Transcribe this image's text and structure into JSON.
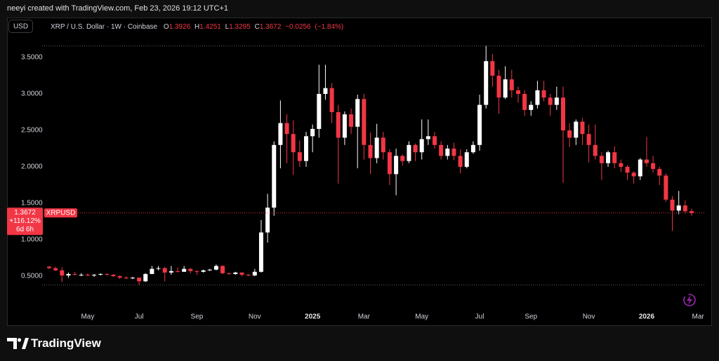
{
  "chart_data": {
    "type": "candlestick",
    "attribution": "neeyi created with TradingView.com, Feb 23, 2026 19:12 UTC+1",
    "currency_button": "USD",
    "symbol_description": "XRP / U.S. Dollar · 1W · Coinbase",
    "ohlc_labels": [
      "O",
      "H",
      "L",
      "C"
    ],
    "change_label": "−0.0256",
    "change_percent_label": "(−1.84%)",
    "price_change_label": "+116.12%",
    "countdown": "6d 6h",
    "branding": "TradingView",
    "grid": false,
    "up_color": "#ffffff",
    "down_color": "#f23645",
    "ylim": [
      0,
      3.85
    ],
    "yticks": [
      {
        "value": 0.5,
        "label": "0.5000"
      },
      {
        "value": 1,
        "label": "1.0000"
      },
      {
        "value": 1.5,
        "label": "1.5000"
      },
      {
        "value": 2,
        "label": "2.0000"
      },
      {
        "value": 2.5,
        "label": "2.5000"
      },
      {
        "value": 3,
        "label": "3.0000"
      },
      {
        "value": 3.5,
        "label": "3.5000"
      }
    ],
    "categories": [
      null,
      null,
      null,
      null,
      null,
      null,
      "May",
      null,
      null,
      null,
      null,
      null,
      null,
      null,
      "Jul",
      null,
      null,
      null,
      null,
      null,
      null,
      null,
      null,
      "Sep",
      null,
      null,
      null,
      null,
      null,
      null,
      null,
      null,
      "Nov",
      null,
      null,
      null,
      null,
      null,
      null,
      null,
      null,
      "2025",
      null,
      null,
      null,
      null,
      null,
      null,
      null,
      "Mar",
      null,
      null,
      null,
      null,
      null,
      null,
      null,
      null,
      "May",
      null,
      null,
      null,
      null,
      null,
      null,
      null,
      null,
      "Jul",
      null,
      null,
      null,
      null,
      null,
      null,
      null,
      "Sep",
      null,
      null,
      null,
      null,
      null,
      null,
      null,
      null,
      "Nov",
      null,
      null,
      null,
      null,
      null,
      null,
      null,
      null,
      "2026",
      null,
      null,
      null,
      null,
      null,
      null,
      null,
      "Mar"
    ],
    "series": [
      {
        "name": "XRPUSD",
        "open": [
          0.63,
          0.61,
          0.58,
          0.51,
          0.53,
          0.52,
          0.52,
          0.51,
          0.52,
          0.53,
          0.52,
          0.5,
          0.48,
          0.47,
          0.48,
          0.43,
          0.53,
          0.6,
          0.61,
          0.55,
          0.57,
          0.56,
          0.6,
          0.57,
          0.56,
          0.58,
          0.59,
          0.64,
          0.54,
          0.53,
          0.55,
          0.52,
          0.51,
          0.56,
          1.1,
          1.44,
          2.3,
          2.6,
          2.45,
          2.2,
          2.08,
          2.42,
          2.52,
          3.0,
          3.08,
          2.75,
          2.4,
          2.72,
          2.55,
          2.93,
          2.3,
          2.12,
          2.4,
          2.2,
          1.9,
          2.15,
          2.08,
          2.3,
          2.2,
          2.38,
          2.42,
          2.3,
          2.15,
          2.25,
          2.15,
          2.0,
          2.2,
          2.3,
          2.85,
          3.45,
          3.25,
          2.95,
          3.2,
          3.05,
          3.0,
          2.78,
          2.85,
          3.05,
          2.95,
          2.85,
          2.95,
          2.5,
          2.4,
          2.62,
          2.45,
          2.3,
          2.15,
          2.05,
          2.2,
          2.05,
          2.0,
          1.92,
          1.87,
          2.1,
          2.05,
          1.97,
          1.88,
          1.55,
          1.4,
          1.47,
          1.3926,
          null
        ],
        "high": [
          0.64,
          0.63,
          0.62,
          0.55,
          0.56,
          0.54,
          0.54,
          0.53,
          0.54,
          0.54,
          0.53,
          0.51,
          0.5,
          0.49,
          0.48,
          0.54,
          0.64,
          0.64,
          0.63,
          0.64,
          0.62,
          0.64,
          0.61,
          0.58,
          0.59,
          0.6,
          0.66,
          0.65,
          0.55,
          0.56,
          0.55,
          0.53,
          0.6,
          1.27,
          1.63,
          2.35,
          2.91,
          2.72,
          2.64,
          2.36,
          2.48,
          2.58,
          3.4,
          3.4,
          3.15,
          2.85,
          2.76,
          2.8,
          2.99,
          3.0,
          2.47,
          2.59,
          2.48,
          2.24,
          2.25,
          2.17,
          2.35,
          2.32,
          2.65,
          2.65,
          2.48,
          2.35,
          2.3,
          2.33,
          2.24,
          2.24,
          2.35,
          2.99,
          3.66,
          3.55,
          3.33,
          3.38,
          3.33,
          3.1,
          3.05,
          2.9,
          3.18,
          3.18,
          3.0,
          3.1,
          3.1,
          2.6,
          2.65,
          2.67,
          2.58,
          2.58,
          2.2,
          2.22,
          2.28,
          2.1,
          2.02,
          1.94,
          2.12,
          2.41,
          2.15,
          2.0,
          1.91,
          1.6,
          1.67,
          1.54,
          1.4251,
          null
        ],
        "low": [
          0.6,
          0.57,
          0.42,
          0.48,
          0.51,
          0.5,
          0.5,
          0.49,
          0.51,
          0.51,
          0.49,
          0.46,
          0.46,
          0.46,
          0.38,
          0.42,
          0.53,
          0.58,
          0.43,
          0.52,
          0.55,
          0.56,
          0.54,
          0.52,
          0.55,
          0.57,
          0.58,
          0.53,
          0.52,
          0.52,
          0.5,
          0.5,
          0.5,
          0.55,
          0.96,
          1.33,
          1.98,
          2.05,
          1.89,
          2.0,
          2.0,
          2.2,
          2.4,
          2.92,
          2.6,
          1.77,
          2.3,
          2.45,
          1.98,
          2.1,
          1.9,
          2.05,
          2.1,
          1.75,
          1.61,
          2.02,
          2.05,
          2.08,
          2.1,
          2.3,
          2.25,
          2.1,
          2.1,
          2.09,
          1.91,
          1.98,
          2.18,
          2.22,
          2.8,
          3.1,
          2.73,
          2.93,
          2.95,
          2.88,
          2.7,
          2.7,
          2.8,
          2.9,
          2.7,
          2.78,
          1.78,
          2.27,
          2.3,
          2.3,
          2.06,
          2.1,
          1.82,
          2.0,
          1.98,
          1.93,
          1.82,
          1.77,
          1.82,
          2.0,
          1.92,
          1.75,
          1.52,
          1.12,
          1.35,
          1.36,
          1.3295,
          null
        ],
        "close": [
          0.61,
          0.58,
          0.51,
          0.53,
          0.52,
          0.52,
          0.51,
          0.52,
          0.53,
          0.52,
          0.5,
          0.48,
          0.47,
          0.48,
          0.43,
          0.53,
          0.6,
          0.61,
          0.55,
          0.57,
          0.56,
          0.6,
          0.57,
          0.56,
          0.58,
          0.59,
          0.64,
          0.54,
          0.53,
          0.55,
          0.52,
          0.51,
          0.56,
          1.1,
          1.44,
          2.3,
          2.6,
          2.45,
          2.2,
          2.08,
          2.42,
          2.52,
          3.0,
          3.08,
          2.75,
          2.4,
          2.72,
          2.55,
          2.93,
          2.3,
          2.12,
          2.4,
          2.2,
          1.9,
          2.15,
          2.08,
          2.3,
          2.2,
          2.38,
          2.42,
          2.3,
          2.15,
          2.25,
          2.15,
          2.0,
          2.2,
          2.3,
          2.85,
          3.45,
          3.25,
          2.95,
          3.2,
          3.05,
          3.0,
          2.78,
          2.85,
          3.05,
          2.95,
          2.85,
          2.95,
          2.5,
          2.4,
          2.62,
          2.45,
          2.3,
          2.15,
          2.05,
          2.2,
          2.05,
          2.0,
          1.92,
          1.87,
          2.1,
          2.05,
          1.97,
          1.88,
          1.55,
          1.4,
          1.47,
          1.39,
          1.3672,
          null
        ]
      }
    ]
  }
}
